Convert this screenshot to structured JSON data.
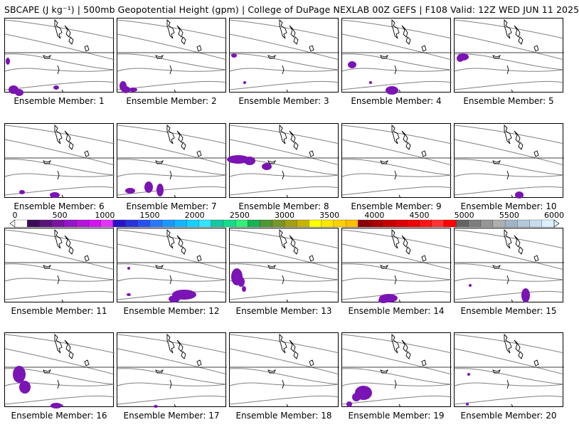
{
  "header": {
    "title": "SBCAPE (J kg⁻¹) | 500mb Geopotential Height (gpm) | College of DuPage NEXLAB 00Z GEFS | F108 Valid: 12Z WED JUN 11 2025"
  },
  "colorbar": {
    "ticks": [
      "0",
      "500",
      "1000",
      "1500",
      "2000",
      "2500",
      "3000",
      "3500",
      "4000",
      "4500",
      "5000",
      "5500",
      "6000"
    ],
    "colors": [
      "#ffffff",
      "#3c0a5a",
      "#5a1478",
      "#7814a0",
      "#9614c8",
      "#b414dc",
      "#d214f0",
      "#e632ff",
      "#2814c8",
      "#2832dc",
      "#2850f0",
      "#2878ff",
      "#1e96ff",
      "#14b4ff",
      "#14d2ff",
      "#32e6ff",
      "#14c8a0",
      "#14dc8c",
      "#32f078",
      "#14b450",
      "#509632",
      "#789628",
      "#a0a014",
      "#c8b400",
      "#ffff00",
      "#ffe600",
      "#ffd200",
      "#ffbe00",
      "#8c0000",
      "#aa0000",
      "#c80000",
      "#dc0000",
      "#f00000",
      "#ff1414",
      "#ff3232",
      "#ff0000",
      "#646464",
      "#7d7d7d",
      "#969696",
      "#afafaf",
      "#a0b4c8",
      "#b4c8dc",
      "#c8dcf0",
      "#dcf0ff"
    ]
  },
  "members": [
    {
      "label": "Ensemble Member: 1"
    },
    {
      "label": "Ensemble Member: 2"
    },
    {
      "label": "Ensemble Member: 3"
    },
    {
      "label": "Ensemble Member: 4"
    },
    {
      "label": "Ensemble Member: 5"
    },
    {
      "label": "Ensemble Member: 6"
    },
    {
      "label": "Ensemble Member: 7"
    },
    {
      "label": "Ensemble Member: 8"
    },
    {
      "label": "Ensemble Member: 9"
    },
    {
      "label": "Ensemble Member: 10"
    },
    {
      "label": "Ensemble Member: 11"
    },
    {
      "label": "Ensemble Member: 12"
    },
    {
      "label": "Ensemble Member: 13"
    },
    {
      "label": "Ensemble Member: 14"
    },
    {
      "label": "Ensemble Member: 15"
    },
    {
      "label": "Ensemble Member: 16"
    },
    {
      "label": "Ensemble Member: 17"
    },
    {
      "label": "Ensemble Member: 18"
    },
    {
      "label": "Ensemble Member: 19"
    },
    {
      "label": "Ensemble Member: 20"
    }
  ],
  "colors": {
    "contour": "#808080",
    "coast": "#000000",
    "cape": "#7a14b4"
  }
}
